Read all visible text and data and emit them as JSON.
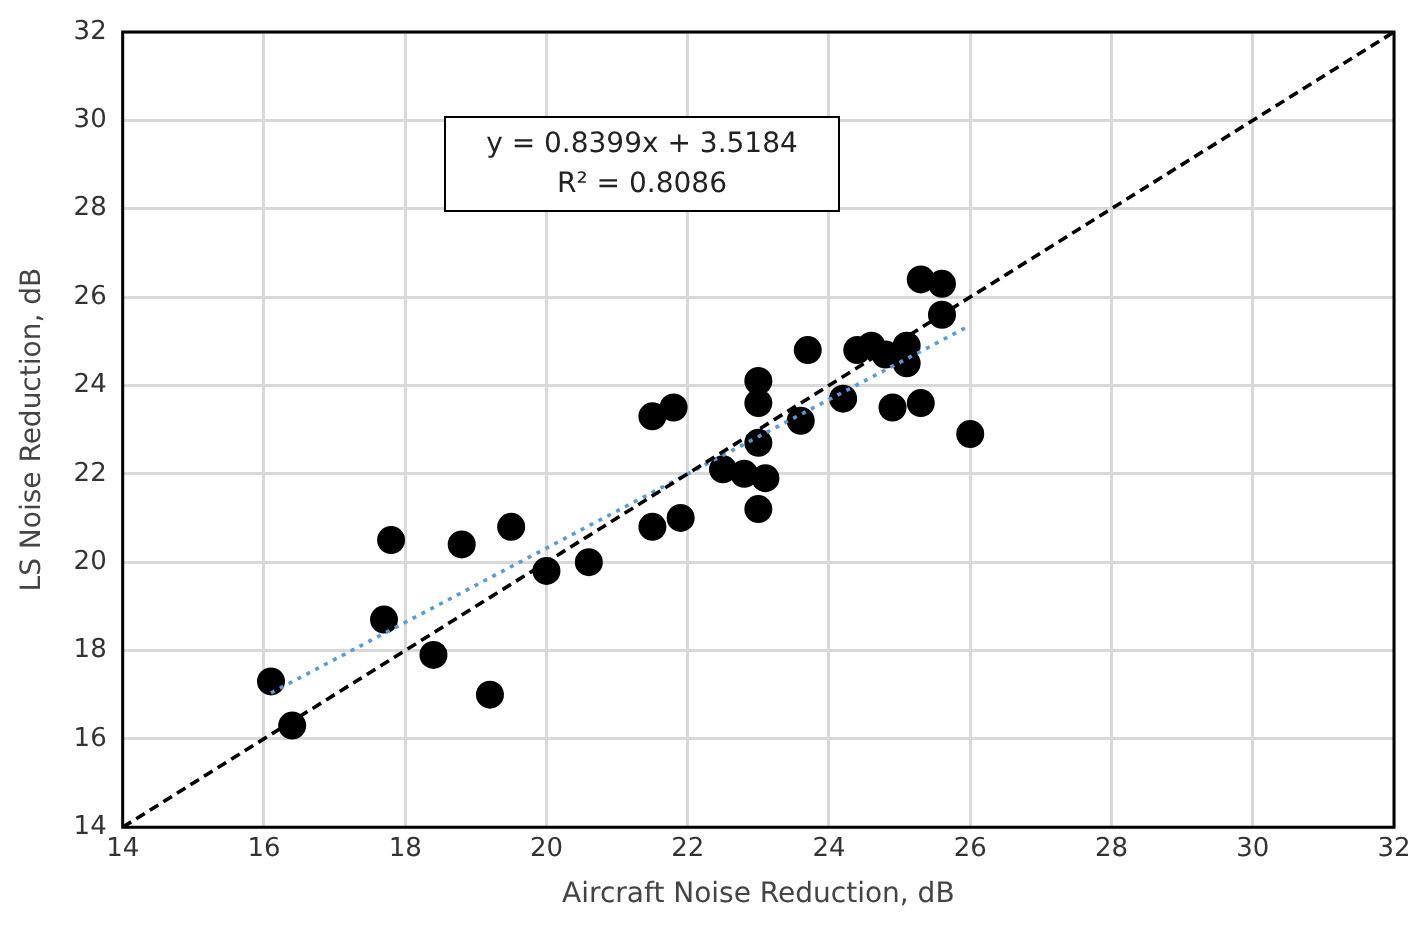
{
  "chart_data": {
    "type": "scatter",
    "xlabel": "Aircraft Noise Reduction, dB",
    "ylabel": "LS Noise Reduction, dB",
    "annotations": [
      "y = 0.8399x + 3.5184",
      "R² = 0.8086"
    ],
    "xlim": [
      14,
      32
    ],
    "xticks": [
      14,
      16,
      18,
      20,
      22,
      24,
      26,
      28,
      30,
      32
    ],
    "ylim": [
      14,
      32
    ],
    "yticks": [
      14,
      16,
      18,
      20,
      22,
      24,
      26,
      28,
      30,
      32
    ],
    "grid": true,
    "marker": "circle",
    "series": [
      {
        "color": "#000000",
        "x": [
          16.1,
          16.4,
          17.7,
          17.8,
          18.8,
          19.5,
          18.4,
          19.2,
          20.0,
          20.6,
          21.5,
          21.9,
          21.5,
          21.8,
          23.0,
          23.1,
          22.5,
          22.8,
          23.0,
          23.0,
          23.0,
          23.6,
          23.7,
          24.2,
          24.4,
          24.6,
          24.8,
          24.9,
          25.1,
          25.1,
          25.3,
          25.3,
          25.6,
          25.6,
          26.0
        ],
        "values": [
          17.3,
          16.3,
          18.7,
          20.5,
          20.4,
          20.8,
          17.9,
          17.0,
          19.8,
          20.0,
          20.8,
          21.0,
          23.3,
          23.5,
          21.2,
          21.9,
          22.1,
          22.0,
          22.7,
          24.1,
          23.6,
          23.2,
          24.8,
          23.7,
          24.8,
          24.9,
          24.7,
          23.5,
          24.5,
          24.9,
          23.6,
          26.4,
          26.3,
          25.6,
          22.9
        ]
      },
      {
        "type": "line",
        "color": "#5b9bd5",
        "line_style": "dotted",
        "marker": "none",
        "x": [
          16.1,
          26.0
        ],
        "values": [
          17.04,
          25.36
        ]
      },
      {
        "type": "line",
        "color": "#000000",
        "line_style": "dashed",
        "marker": "none",
        "x": [
          14,
          32
        ],
        "values": [
          14,
          32
        ]
      }
    ]
  }
}
